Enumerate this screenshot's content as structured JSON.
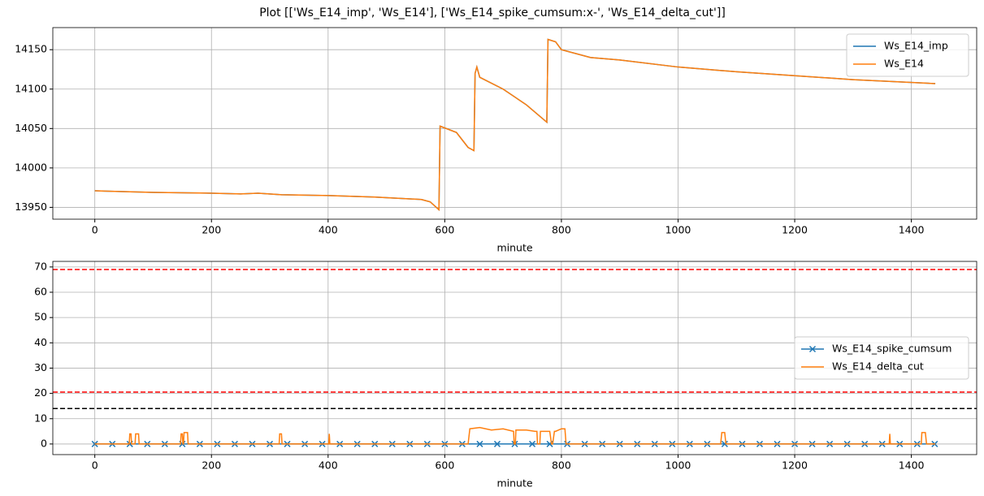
{
  "chart_data": [
    {
      "type": "line",
      "title": "Plot [['Ws_E14_imp', 'Ws_E14'], ['Ws_E14_spike_cumsum:x-', 'Ws_E14_delta_cut']]",
      "xlabel": "minute",
      "xlim": [
        -72,
        1512
      ],
      "xticks": [
        0,
        200,
        400,
        600,
        800,
        1000,
        1200,
        1400
      ],
      "ylim": [
        13935,
        14178
      ],
      "yticks": [
        13950,
        14000,
        14050,
        14100,
        14150
      ],
      "grid": true,
      "legend": "upper right",
      "series": [
        {
          "name": "Ws_E14_imp",
          "color": "#1f77b4",
          "x": [
            0,
            100,
            200,
            250,
            280,
            320,
            400,
            480,
            560,
            575,
            590,
            592,
            620,
            640,
            650,
            652,
            655,
            660,
            700,
            740,
            775,
            777,
            790,
            800,
            850,
            900,
            1000,
            1100,
            1200,
            1300,
            1441
          ],
          "values": [
            13971,
            13969,
            13968,
            13967,
            13968,
            13966,
            13965,
            13963,
            13960,
            13957,
            13947,
            14053,
            14045,
            14026,
            14022,
            14120,
            14128,
            14115,
            14100,
            14080,
            14058,
            14163,
            14160,
            14150,
            14140,
            14137,
            14128,
            14122,
            14117,
            14112,
            14107
          ]
        },
        {
          "name": "Ws_E14",
          "color": "#ff7f0e",
          "x": [
            0,
            100,
            200,
            250,
            280,
            320,
            400,
            480,
            560,
            575,
            590,
            592,
            620,
            640,
            650,
            652,
            655,
            660,
            700,
            740,
            775,
            777,
            790,
            800,
            850,
            900,
            1000,
            1100,
            1200,
            1300,
            1441
          ],
          "values": [
            13971,
            13969,
            13968,
            13967,
            13968,
            13966,
            13965,
            13963,
            13960,
            13957,
            13947,
            14053,
            14045,
            14026,
            14022,
            14120,
            14128,
            14115,
            14100,
            14080,
            14058,
            14163,
            14160,
            14150,
            14140,
            14137,
            14128,
            14122,
            14117,
            14112,
            14107
          ]
        }
      ]
    },
    {
      "type": "line",
      "xlabel": "minute",
      "xlim": [
        -72,
        1512
      ],
      "xticks": [
        0,
        200,
        400,
        600,
        800,
        1000,
        1200,
        1400
      ],
      "ylim": [
        -4.2,
        72.2
      ],
      "yticks": [
        0,
        10,
        20,
        30,
        40,
        50,
        60,
        70
      ],
      "grid": true,
      "legend": "center right",
      "hlines": [
        {
          "value": 69,
          "color": "red"
        },
        {
          "value": 20.5,
          "color": "red"
        },
        {
          "value": 14,
          "color": "black"
        }
      ],
      "series": [
        {
          "name": "Ws_E14_spike_cumsum",
          "color": "#1f77b4",
          "marker": "x",
          "x": [
            0,
            30,
            60,
            90,
            120,
            150,
            180,
            210,
            240,
            270,
            300,
            330,
            360,
            390,
            420,
            450,
            480,
            510,
            540,
            570,
            600,
            630,
            660,
            690,
            720,
            750,
            780,
            810,
            840,
            870,
            900,
            930,
            960,
            990,
            1020,
            1050,
            1080,
            1110,
            1140,
            1170,
            1200,
            1230,
            1260,
            1290,
            1320,
            1350,
            1380,
            1410,
            1440
          ],
          "values": [
            0,
            0,
            0,
            0,
            0,
            0,
            0,
            0,
            0,
            0,
            0,
            0,
            0,
            0,
            0,
            0,
            0,
            0,
            0,
            0,
            0,
            0,
            0,
            0,
            0,
            0,
            0,
            0,
            0,
            0,
            0,
            0,
            0,
            0,
            0,
            0,
            0,
            0,
            0,
            0,
            0,
            0,
            0,
            0,
            0,
            0,
            0,
            0,
            0
          ]
        },
        {
          "name": "Ws_E14_delta_cut",
          "color": "#ff7f0e",
          "x": [
            0,
            59,
            60,
            62,
            63,
            69,
            70,
            75,
            76,
            147,
            148,
            150,
            151,
            152,
            153,
            159,
            160,
            316,
            317,
            320,
            321,
            401,
            402,
            403,
            640,
            643,
            660,
            680,
            700,
            718,
            719,
            721,
            722,
            740,
            755,
            758,
            759,
            763,
            764,
            780,
            783,
            785,
            788,
            790,
            800,
            806,
            808,
            1073,
            1075,
            1080,
            1082,
            1362,
            1363,
            1364,
            1417,
            1418,
            1424,
            1426,
            1441
          ],
          "values": [
            0,
            0,
            4,
            4,
            0,
            0,
            4,
            4,
            0,
            0,
            4,
            4,
            0,
            0,
            4.5,
            4.5,
            0,
            0,
            4,
            4,
            0,
            0,
            4,
            0,
            0,
            6,
            6.5,
            5.5,
            6,
            5,
            0,
            0,
            5.5,
            5.5,
            5,
            5,
            0,
            0,
            5,
            5,
            0,
            0,
            5,
            5,
            6,
            6,
            0,
            0,
            4.5,
            4.5,
            0,
            0,
            4,
            0,
            0,
            4.5,
            4.5,
            0,
            0
          ]
        }
      ]
    }
  ]
}
